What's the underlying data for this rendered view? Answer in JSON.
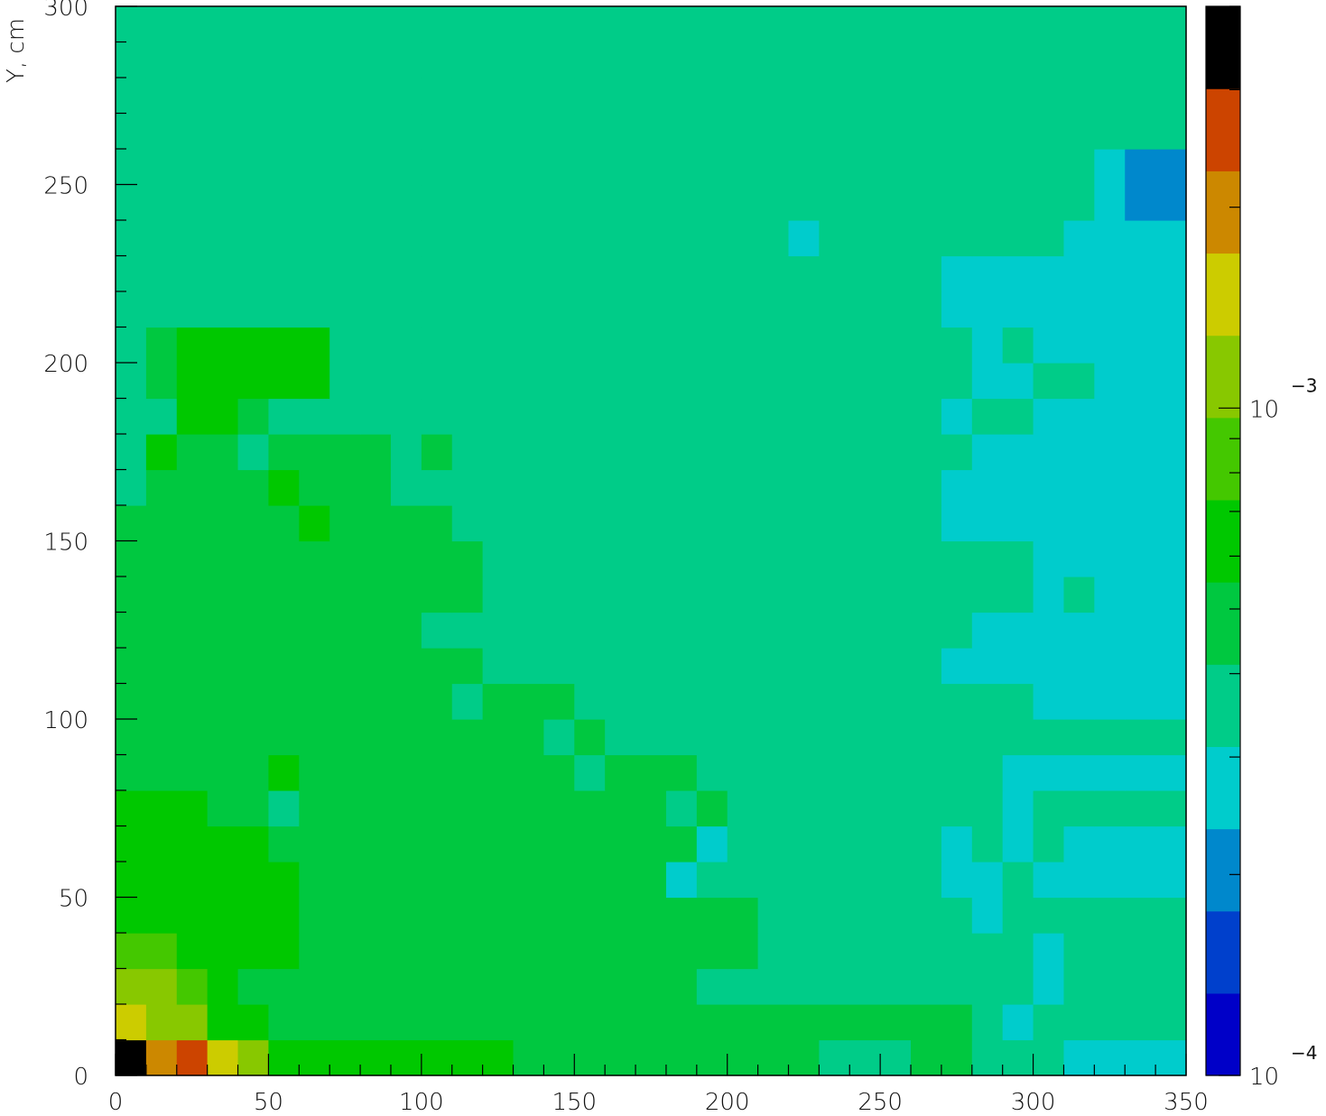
{
  "chart_data": {
    "type": "heatmap",
    "title": "",
    "xlabel": "",
    "ylabel": "Y, cm",
    "xlim": [
      0,
      350
    ],
    "ylim": [
      0,
      300
    ],
    "x_ticks": [
      "0",
      "50",
      "100",
      "150",
      "200",
      "250",
      "300",
      "350"
    ],
    "y_ticks": [
      "0",
      "50",
      "100",
      "150",
      "200",
      "250",
      "300"
    ],
    "colorbar": {
      "scale": "log",
      "range": [
        0.0001,
        0.004
      ],
      "labels": [
        {
          "base": "10",
          "exp": "−4",
          "value": 0.0001
        },
        {
          "base": "10",
          "exp": "−3",
          "value": 0.001
        }
      ],
      "palette": [
        "#0000c8",
        "#0040cc",
        "#0088cc",
        "#00cccc",
        "#00cc88",
        "#00c840",
        "#00c800",
        "#44c800",
        "#88c800",
        "#cccc00",
        "#cc8800",
        "#cc4400",
        "#000000"
      ]
    },
    "bin_size": [
      10,
      10
    ],
    "levels_rows_bottom_to_top": [
      "CAB98666666665555555555444554443",
      "9886655555555555555555555555434",
      "88765555555555555554444444444434",
      "77666655555555555555544444444434",
      "66666655555555555555544444443444",
      "6666665555555555553444444443343",
      "66666555555555555553444444434343",
      "666554555555555555454444444443444",
      "5555565555555554555444444444433333",
      "55555555555555454444444444444444444",
      "555555555554555444444444444444333333",
      "5555555555554444444444444443333333",
      "5555555555444444444444444444333333",
      "5555555555554444444444444444443433",
      "5555555555554444444444444444443333",
      "5555556555544444444444444443333333",
      "4555565554444444444444444443333333",
      "46554555545444444444444444443333333",
      "44665444444444444444444444434433333",
      "4566666444444444444444444444334433",
      "4566666444444444444444444444343333",
      "44444444444444444444444444433333333",
      "4444444444444444444444444443333333",
      "4444444444444444444444344444444333",
      "4444444444444444444444444444444432",
      "4444444444444444444444444444444432",
      "4444444444444444444444444444444444",
      "4444444444444444444444444444444444",
      "4444444444444444444444444444444444",
      "4444444444444444444444444444444444"
    ]
  }
}
